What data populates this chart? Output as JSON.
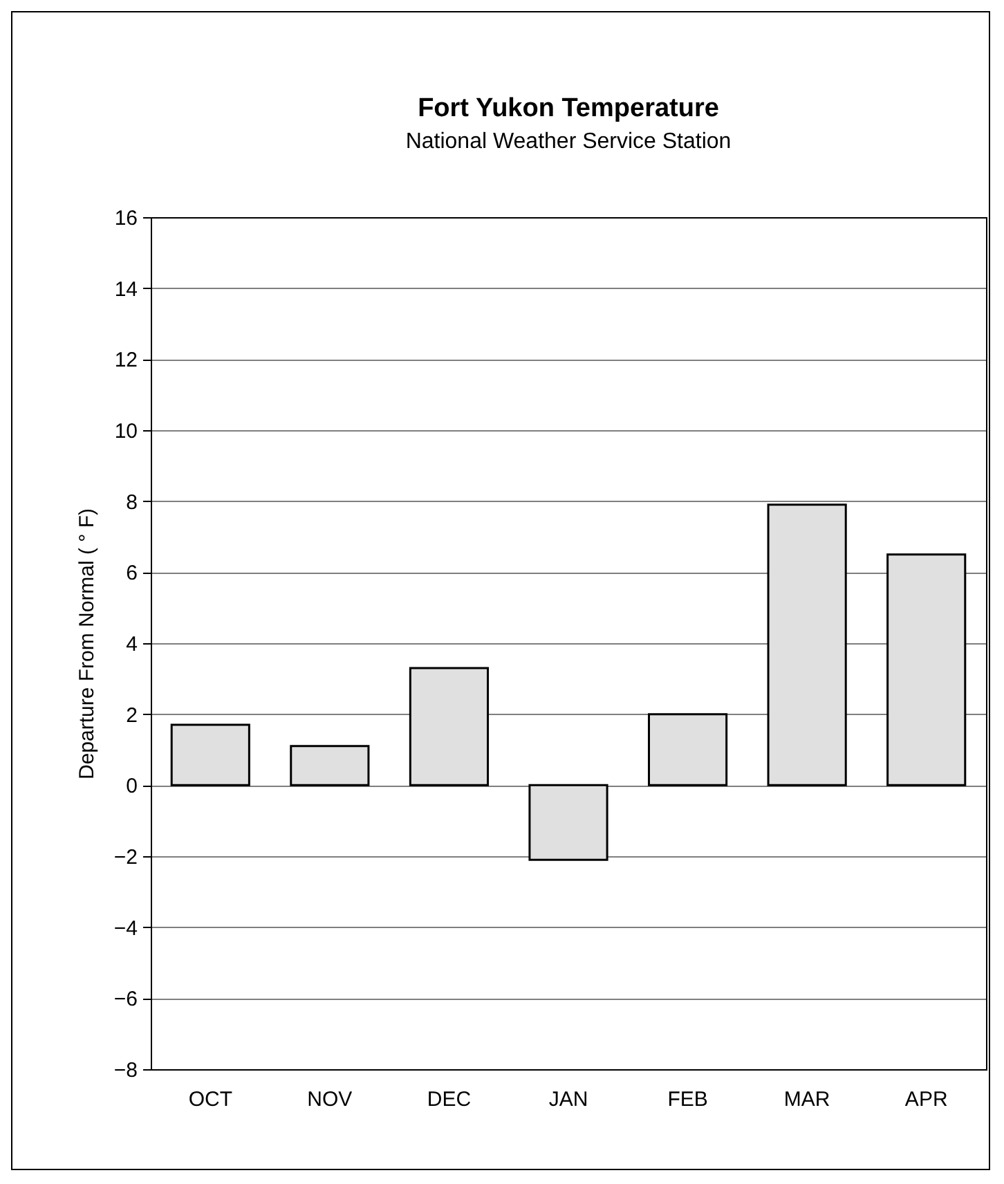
{
  "chart_data": {
    "type": "bar",
    "title": "Fort Yukon Temperature",
    "subtitle": "National Weather Service Station",
    "ylabel": "Departure From Normal  ( ° F)",
    "categories": [
      "OCT",
      "NOV",
      "DEC",
      "JAN",
      "FEB",
      "MAR",
      "APR"
    ],
    "values": [
      1.7,
      1.1,
      3.3,
      -2.1,
      2.0,
      7.9,
      6.5
    ],
    "color": "#e0e0e0",
    "ylim": [
      -8,
      16
    ],
    "yticks": [
      -8,
      -6,
      -4,
      -2,
      0,
      2,
      4,
      6,
      8,
      10,
      12,
      14,
      16
    ],
    "grid": "y"
  }
}
